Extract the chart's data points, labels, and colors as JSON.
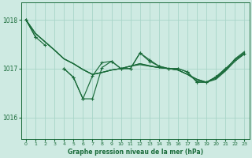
{
  "background_color": "#ceeae2",
  "grid_color": "#a8d5c8",
  "line_color": "#1a6b3a",
  "title": "Graphe pression niveau de la mer (hPa)",
  "xlim": [
    -0.5,
    23.5
  ],
  "ylim": [
    1015.55,
    1018.35
  ],
  "yticks": [
    1016,
    1017,
    1018
  ],
  "xticks": [
    0,
    1,
    2,
    3,
    4,
    5,
    6,
    7,
    8,
    9,
    10,
    11,
    12,
    13,
    14,
    15,
    16,
    17,
    18,
    19,
    20,
    21,
    22,
    23
  ],
  "hours": [
    0,
    1,
    2,
    3,
    4,
    5,
    6,
    7,
    8,
    9,
    10,
    11,
    12,
    13,
    14,
    15,
    16,
    17,
    18,
    19,
    20,
    21,
    22,
    23
  ],
  "line_smooth1": [
    1018.0,
    1017.72,
    1017.55,
    1017.38,
    1017.2,
    1017.1,
    1016.98,
    1016.88,
    1016.92,
    1016.97,
    1017.0,
    1017.05,
    1017.08,
    1017.05,
    1017.02,
    1017.0,
    1016.97,
    1016.88,
    1016.75,
    1016.72,
    1016.78,
    1016.95,
    1017.15,
    1017.3
  ],
  "line_smooth2": [
    1018.0,
    1017.72,
    1017.55,
    1017.38,
    1017.2,
    1017.1,
    1016.98,
    1016.88,
    1016.92,
    1016.97,
    1017.0,
    1017.05,
    1017.1,
    1017.05,
    1017.02,
    1017.0,
    1016.97,
    1016.88,
    1016.78,
    1016.72,
    1016.8,
    1016.97,
    1017.18,
    1017.33
  ],
  "line_smooth3": [
    1018.0,
    1017.72,
    1017.55,
    1017.38,
    1017.2,
    1017.1,
    1016.98,
    1016.88,
    1016.92,
    1016.97,
    1017.0,
    1017.05,
    1017.1,
    1017.06,
    1017.02,
    1017.0,
    1016.97,
    1016.88,
    1016.78,
    1016.72,
    1016.82,
    1016.97,
    1017.2,
    1017.35
  ],
  "line_jagged1": [
    1018.0,
    1017.65,
    null,
    null,
    1017.0,
    1016.82,
    1016.38,
    1016.38,
    1017.02,
    1017.15,
    1017.0,
    1017.0,
    1017.32,
    1017.15,
    1017.05,
    1017.0,
    1017.0,
    1016.93,
    1016.72,
    1016.72,
    1016.83,
    1017.0,
    null,
    null
  ],
  "line_jagged2": [
    1018.0,
    1017.65,
    1017.48,
    null,
    1017.0,
    1016.82,
    1016.38,
    1016.85,
    1017.12,
    1017.15,
    1017.0,
    1017.0,
    1017.32,
    1017.18,
    1017.05,
    1017.0,
    1017.0,
    1016.93,
    1016.72,
    1016.72,
    1016.83,
    1017.0,
    1017.18,
    1017.3
  ]
}
